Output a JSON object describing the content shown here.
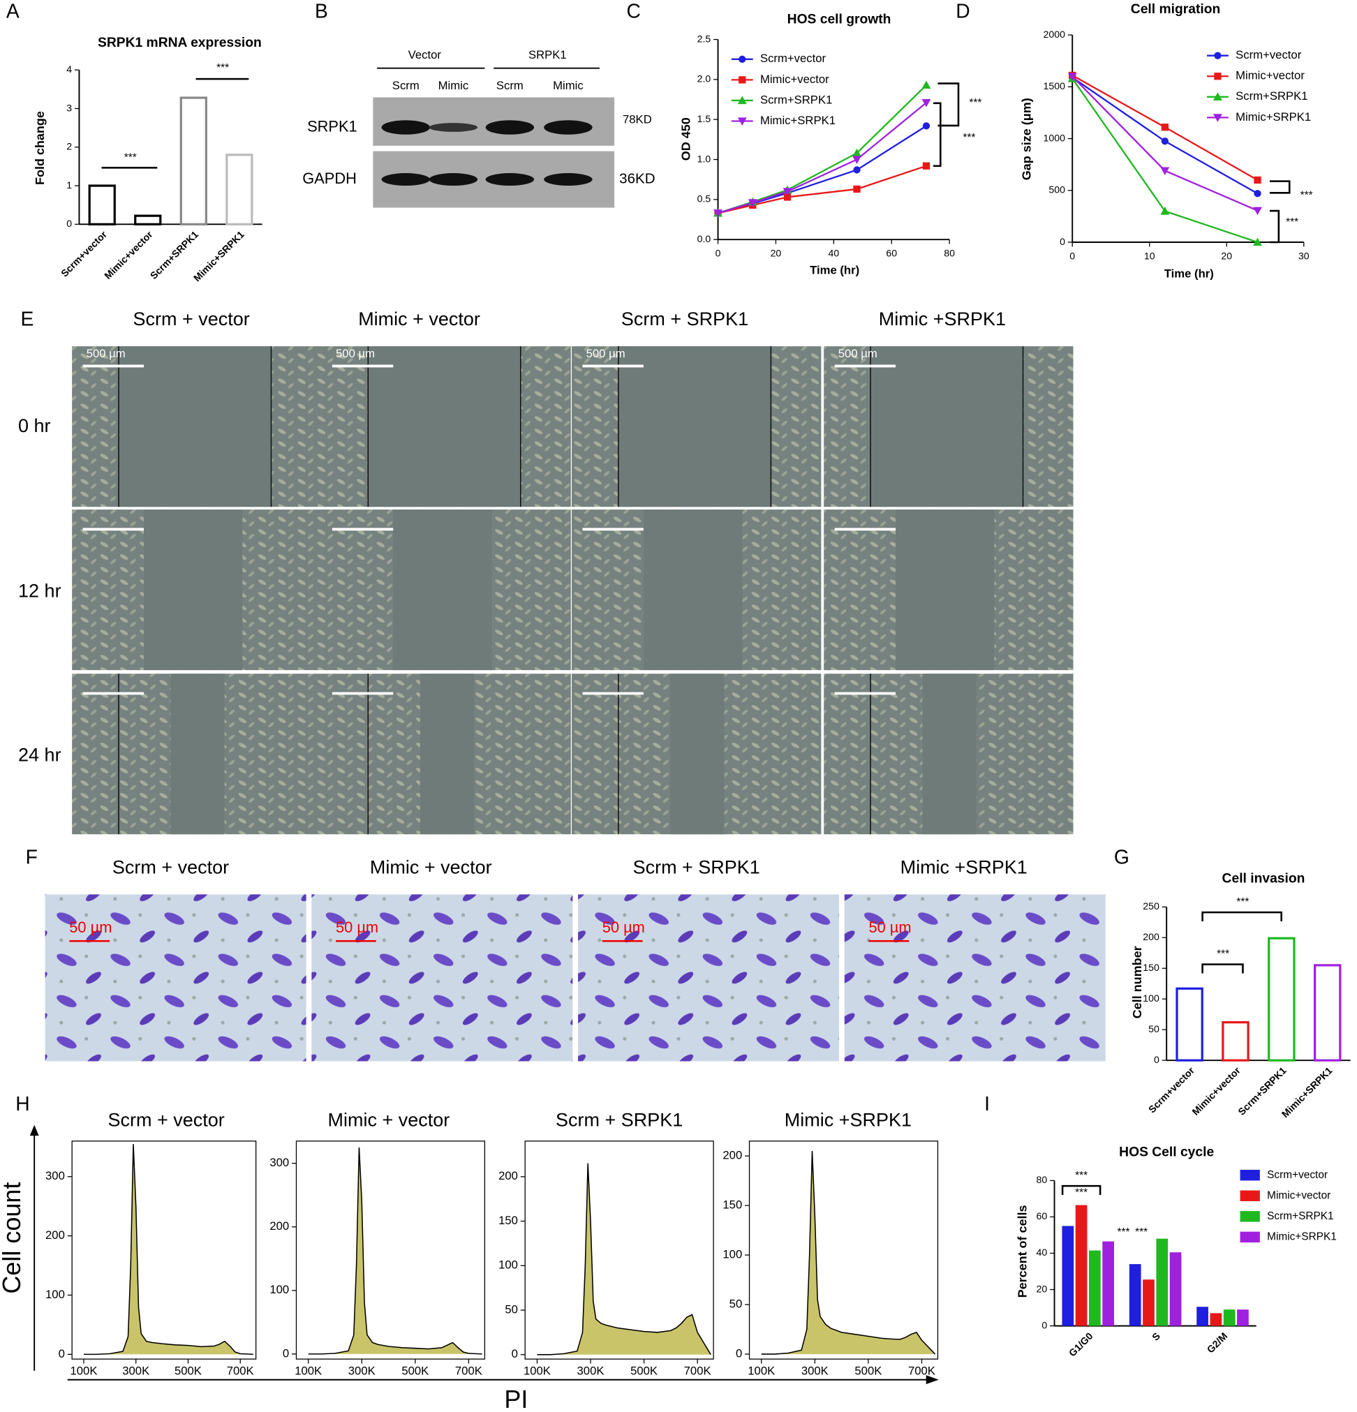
{
  "panel_labels": [
    "A",
    "B",
    "C",
    "D",
    "E",
    "F",
    "G",
    "H",
    "I"
  ],
  "blot": {
    "groups": [
      "Vector",
      "SRPK1"
    ],
    "lanes": [
      "Scrm",
      "Mimic",
      "Scrm",
      "Mimic"
    ],
    "rows": [
      "SRPK1",
      "GAPDH"
    ],
    "sizes": [
      "78KD",
      "36KD"
    ]
  },
  "scratch": {
    "columns": [
      "Scrm + vector",
      "Mimic + vector",
      "Scrm + SRPK1",
      "Mimic +SRPK1"
    ],
    "rows": [
      "0 hr",
      "12 hr",
      "24 hr"
    ],
    "scale_bars": [
      "500 µm",
      "500 µm",
      "500 µm",
      "500 µm"
    ]
  },
  "transwell": {
    "columns": [
      "Scrm + vector",
      "Mimic + vector",
      "Scrm + SRPK1",
      "Mimic +SRPK1"
    ],
    "scale_bars": [
      "50 µm",
      "50 µm",
      "50 µm",
      "50 µm"
    ]
  },
  "cytometry": {
    "ylabel": "Cell count",
    "xlabel": "PI"
  },
  "chart_data": [
    {
      "type": "bar",
      "title": "SRPK1 mRNA expression",
      "ylabel": "Fold change",
      "categories": [
        "Scrm+vector",
        "Mimic+vector",
        "Scrm+SRPK1",
        "Mimic+SRPK1"
      ],
      "values": [
        1.0,
        0.22,
        3.28,
        1.8
      ],
      "colors": [
        "#000000",
        "#000000",
        "#888888",
        "#bbbbbb"
      ],
      "hollow": true,
      "ylim": [
        0,
        4
      ],
      "yticks": [
        0,
        1,
        2,
        3,
        4
      ],
      "annotations": [
        "***",
        "***"
      ]
    },
    {
      "type": "line",
      "title": "HOS cell growth",
      "xlabel": "Time (hr)",
      "ylabel": "OD 450",
      "x": [
        0,
        12,
        24,
        48,
        72
      ],
      "xlim": [
        0,
        80
      ],
      "xticks": [
        0,
        20,
        40,
        60,
        80
      ],
      "ylim": [
        0,
        2.5
      ],
      "yticks": [
        {
          "value": 0,
          "label": "0.0"
        },
        {
          "value": 0.5,
          "label": "0.5"
        },
        {
          "value": 1,
          "label": "1.0"
        },
        {
          "value": 1.5,
          "label": "1.5"
        },
        {
          "value": 2,
          "label": "2.0"
        },
        {
          "value": 2.5,
          "label": "2.5"
        }
      ],
      "series": [
        {
          "name": "Scrm+vector",
          "color": "#1f1fe0",
          "marker": "circle",
          "values": [
            0.33,
            0.45,
            0.58,
            0.87,
            1.42
          ]
        },
        {
          "name": "Mimic+vector",
          "color": "#e81818",
          "marker": "square",
          "values": [
            0.33,
            0.43,
            0.53,
            0.63,
            0.92
          ]
        },
        {
          "name": "Scrm+SRPK1",
          "color": "#1fb81f",
          "marker": "triangle",
          "values": [
            0.33,
            0.47,
            0.62,
            1.08,
            1.93
          ]
        },
        {
          "name": "Mimic+SRPK1",
          "color": "#a020e0",
          "marker": "triangle-down",
          "values": [
            0.33,
            0.46,
            0.6,
            1.0,
            1.71
          ]
        }
      ],
      "annotations": [
        "***",
        "***"
      ]
    },
    {
      "type": "line",
      "title": "Cell migration",
      "xlabel": "Time (hr)",
      "ylabel": "Gap size (μm)",
      "x": [
        0,
        12,
        24
      ],
      "xlim": [
        0,
        30
      ],
      "xticks": [
        0,
        10,
        20,
        30
      ],
      "ylim": [
        0,
        2000
      ],
      "yticks": [
        0,
        500,
        1000,
        1500,
        2000
      ],
      "series": [
        {
          "name": "Scrm+vector",
          "color": "#1f1fe0",
          "marker": "circle",
          "values": [
            1590,
            975,
            470
          ]
        },
        {
          "name": "Mimic+vector",
          "color": "#e81818",
          "marker": "square",
          "values": [
            1610,
            1110,
            600
          ]
        },
        {
          "name": "Scrm+SRPK1",
          "color": "#1fb81f",
          "marker": "triangle",
          "values": [
            1580,
            300,
            0
          ]
        },
        {
          "name": "Mimic+SRPK1",
          "color": "#a020e0",
          "marker": "triangle-down",
          "values": [
            1600,
            690,
            305
          ]
        }
      ],
      "annotations": [
        "***",
        "***"
      ]
    },
    {
      "type": "bar",
      "title": "Cell invasion",
      "ylabel": "Cell number",
      "categories": [
        "Scrm+vector",
        "Mimic+vector",
        "Scrm+SRPK1",
        "Mimic+SRPK1"
      ],
      "values": [
        117,
        62,
        199,
        155
      ],
      "colors": [
        "#1f1fe0",
        "#e81818",
        "#1fb81f",
        "#a020e0"
      ],
      "hollow": true,
      "ylim": [
        0,
        250
      ],
      "yticks": [
        0,
        50,
        100,
        150,
        200,
        250
      ],
      "annotations": [
        "***",
        "***"
      ]
    },
    {
      "type": "bar",
      "title": "HOS Cell cycle",
      "ylabel": "Percent of cells",
      "categories": [
        "G1/G0",
        "S",
        "G2/M"
      ],
      "ylim": [
        0,
        80
      ],
      "yticks": [
        0,
        20,
        40,
        60,
        80
      ],
      "series": [
        {
          "name": "Scrm+vector",
          "color": "#1f1fe0",
          "values": [
            55,
            34,
            10.5
          ]
        },
        {
          "name": "Mimic+vector",
          "color": "#e81818",
          "values": [
            66.5,
            25.5,
            7
          ]
        },
        {
          "name": "Scrm+SRPK1",
          "color": "#1fb81f",
          "values": [
            41.5,
            48,
            9
          ]
        },
        {
          "name": "Mimic+SRPK1",
          "color": "#a020e0",
          "values": [
            46.5,
            40.5,
            9
          ]
        }
      ],
      "annotations": [
        "***",
        "***",
        "***",
        "***"
      ]
    },
    {
      "type": "area",
      "title": "Scrm + vector",
      "color": "#c9c46a",
      "line_color": "#000000",
      "x": [
        100000,
        150000,
        200000,
        250000,
        270000,
        280000,
        290000,
        300000,
        310000,
        320000,
        340000,
        360000,
        400000,
        450000,
        500000,
        550000,
        600000,
        620000,
        640000,
        660000,
        680000,
        700000,
        750000
      ],
      "values": [
        0,
        0,
        1,
        5,
        30,
        150,
        355,
        250,
        80,
        35,
        22,
        20,
        18,
        16,
        15,
        13,
        14,
        17,
        22,
        14,
        4,
        1,
        0
      ],
      "xlim": [
        55000,
        760000
      ],
      "xticks": [
        {
          "value": 100000,
          "label": "100K"
        },
        {
          "value": 300000,
          "label": "300K"
        },
        {
          "value": 500000,
          "label": "500K"
        },
        {
          "value": 700000,
          "label": "700K"
        }
      ],
      "ylim": [
        -8,
        360
      ],
      "yticks": [
        0,
        100,
        200,
        300
      ]
    },
    {
      "type": "area",
      "title": "Mimic + vector",
      "color": "#c9c46a",
      "line_color": "#000000",
      "x": [
        100000,
        150000,
        200000,
        250000,
        270000,
        280000,
        290000,
        300000,
        310000,
        320000,
        340000,
        360000,
        400000,
        450000,
        500000,
        550000,
        600000,
        620000,
        640000,
        660000,
        680000,
        700000,
        750000
      ],
      "values": [
        0,
        0,
        1,
        5,
        30,
        140,
        325,
        240,
        80,
        30,
        18,
        15,
        12,
        10,
        9,
        8,
        10,
        14,
        18,
        10,
        3,
        1,
        0
      ],
      "xlim": [
        55000,
        760000
      ],
      "xticks": [
        {
          "value": 100000,
          "label": "100K"
        },
        {
          "value": 300000,
          "label": "300K"
        },
        {
          "value": 500000,
          "label": "500K"
        },
        {
          "value": 700000,
          "label": "700K"
        }
      ],
      "ylim": [
        -8,
        335
      ],
      "yticks": [
        0,
        100,
        200,
        300
      ]
    },
    {
      "type": "area",
      "title": "Scrm + SRPK1",
      "color": "#c9c46a",
      "line_color": "#000000",
      "x": [
        100000,
        150000,
        200000,
        250000,
        270000,
        280000,
        290000,
        300000,
        310000,
        320000,
        340000,
        360000,
        400000,
        450000,
        500000,
        550000,
        600000,
        620000,
        640000,
        660000,
        680000,
        700000,
        750000
      ],
      "values": [
        0,
        0,
        1,
        4,
        25,
        100,
        215,
        150,
        60,
        40,
        35,
        33,
        30,
        28,
        26,
        25,
        27,
        30,
        35,
        42,
        45,
        25,
        0
      ],
      "xlim": [
        55000,
        760000
      ],
      "xticks": [
        {
          "value": 100000,
          "label": "100K"
        },
        {
          "value": 300000,
          "label": "300K"
        },
        {
          "value": 500000,
          "label": "500K"
        },
        {
          "value": 700000,
          "label": "700K"
        }
      ],
      "ylim": [
        -5,
        240
      ],
      "yticks": [
        0,
        50,
        100,
        150,
        200
      ]
    },
    {
      "type": "area",
      "title": "Mimic +SRPK1",
      "color": "#c9c46a",
      "line_color": "#000000",
      "x": [
        100000,
        150000,
        200000,
        250000,
        270000,
        280000,
        290000,
        300000,
        310000,
        320000,
        340000,
        360000,
        400000,
        450000,
        500000,
        550000,
        600000,
        620000,
        640000,
        660000,
        680000,
        700000,
        750000
      ],
      "values": [
        0,
        0,
        1,
        4,
        25,
        100,
        205,
        140,
        55,
        38,
        30,
        26,
        22,
        20,
        18,
        16,
        15,
        15,
        17,
        20,
        22,
        14,
        0
      ],
      "xlim": [
        55000,
        760000
      ],
      "xticks": [
        {
          "value": 100000,
          "label": "100K"
        },
        {
          "value": 300000,
          "label": "300K"
        },
        {
          "value": 500000,
          "label": "500K"
        },
        {
          "value": 700000,
          "label": "700K"
        }
      ],
      "ylim": [
        -5,
        215
      ],
      "yticks": [
        0,
        50,
        100,
        150,
        200
      ]
    }
  ]
}
